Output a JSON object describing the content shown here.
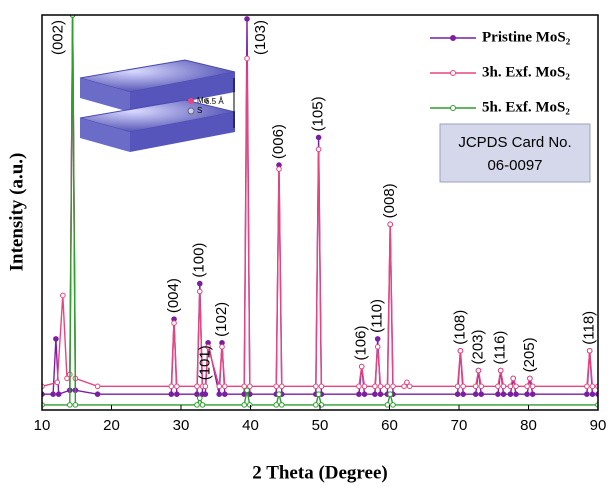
{
  "chart_data": {
    "type": "line",
    "x_label": "2 Theta (Degree)",
    "y_label": "Intensity (a.u.)",
    "xlim": [
      10,
      90
    ],
    "xticks": [
      10,
      20,
      30,
      40,
      50,
      60,
      70,
      80,
      90
    ],
    "ylim": [
      0,
      100
    ],
    "legend": "upper right",
    "series": [
      {
        "name": "Pristine MoS₂",
        "color": "#7b1fa2",
        "marker": "filled",
        "x": [
          10,
          11.6,
          12,
          12.4,
          14.0,
          14.4,
          14.8,
          18,
          28.6,
          29,
          29.4,
          32.3,
          32.7,
          33.1,
          33.5,
          33.9,
          35.5,
          35.9,
          36.3,
          39.1,
          39.5,
          39.9,
          43.7,
          44.1,
          44.5,
          49.4,
          49.8,
          50.2,
          55.6,
          56,
          56.4,
          57.9,
          58.3,
          58.7,
          59.7,
          60.1,
          60.5,
          69.8,
          70.2,
          70.6,
          72.4,
          72.8,
          73.2,
          75.6,
          76,
          76.4,
          77.4,
          77.8,
          78.2,
          79.8,
          80.2,
          80.6,
          88.4,
          88.8,
          89.2,
          90
        ],
        "values": [
          4,
          4,
          18,
          4,
          5,
          100,
          5,
          4,
          4,
          23,
          4,
          4,
          32,
          4,
          4,
          17,
          4,
          17,
          4,
          4,
          99,
          4,
          4,
          62,
          4,
          4,
          69,
          4,
          4,
          11,
          4,
          4,
          18,
          4,
          4,
          47,
          4,
          4,
          15,
          4,
          4,
          10,
          4,
          4,
          10,
          4,
          4,
          8,
          4,
          4,
          8,
          4,
          4,
          15,
          4,
          4
        ]
      },
      {
        "name": "3h. Exf. MoS₂",
        "color": "#e8457f",
        "marker": "hollow",
        "x": [
          10,
          12.2,
          13,
          13.6,
          14.0,
          14.4,
          14.8,
          18,
          28.6,
          29,
          29.4,
          32.3,
          32.7,
          33.1,
          33.5,
          33.9,
          35.5,
          35.9,
          36.3,
          39.1,
          39.5,
          39.9,
          43.7,
          44.1,
          44.5,
          49.4,
          49.8,
          50.2,
          55.6,
          56,
          56.4,
          57.9,
          58.3,
          58.7,
          59.7,
          60.1,
          60.5,
          62.1,
          62.5,
          62.9,
          69.8,
          70.2,
          70.6,
          72.4,
          72.8,
          73.2,
          75.6,
          76,
          76.4,
          77.4,
          77.8,
          78.2,
          79.8,
          80.2,
          80.6,
          88.4,
          88.8,
          89.2,
          90
        ],
        "values": [
          6,
          7,
          29,
          8,
          9,
          100,
          8,
          6,
          6,
          22,
          6,
          6,
          30,
          6,
          6,
          16,
          6,
          16,
          6,
          6,
          89,
          6,
          6,
          61,
          6,
          6,
          66,
          6,
          6,
          11,
          6,
          6,
          16,
          6,
          6,
          47,
          6,
          6,
          7,
          6,
          6,
          15,
          6,
          6,
          10,
          6,
          6,
          10,
          6,
          6,
          8,
          6,
          6,
          8,
          6,
          6,
          15,
          6,
          6
        ]
      },
      {
        "name": "5h. Exf. MoS₂",
        "color": "#2e9e2e",
        "marker": "hollow",
        "x": [
          10,
          14.0,
          14.4,
          14.8,
          32.3,
          32.7,
          33.1,
          39.1,
          39.5,
          39.9,
          43.7,
          44.1,
          44.5,
          49.4,
          49.8,
          50.2,
          59.7,
          60.1,
          60.5,
          90
        ],
        "values": [
          1.3,
          1.3,
          100,
          1.3,
          1.3,
          3,
          1.3,
          1.3,
          5,
          1.3,
          1.3,
          4,
          1.3,
          1.3,
          4,
          1.3,
          1.3,
          4,
          1.3,
          1.3
        ]
      }
    ],
    "annotations": [
      {
        "text": "(002)",
        "x": 14.4
      },
      {
        "text": "(004)",
        "x": 29
      },
      {
        "text": "(100)",
        "x": 32.7
      },
      {
        "text": "(101)",
        "x": 33.5
      },
      {
        "text": "(102)",
        "x": 35.9
      },
      {
        "text": "(103)",
        "x": 39.5
      },
      {
        "text": "(006)",
        "x": 44.1
      },
      {
        "text": "(105)",
        "x": 49.8
      },
      {
        "text": "(106)",
        "x": 56
      },
      {
        "text": "(110)",
        "x": 58.3
      },
      {
        "text": "(008)",
        "x": 60.1
      },
      {
        "text": "(108)",
        "x": 70.2
      },
      {
        "text": "(203)",
        "x": 72.8
      },
      {
        "text": "(116)",
        "x": 76
      },
      {
        "text": "(205)",
        "x": 80.2
      },
      {
        "text": "(118)",
        "x": 88.8
      }
    ],
    "card_label": [
      "JCPDS Card No.",
      "06-0097"
    ],
    "inset_labels": [
      "Mo",
      "S",
      "6.5 Å"
    ]
  }
}
